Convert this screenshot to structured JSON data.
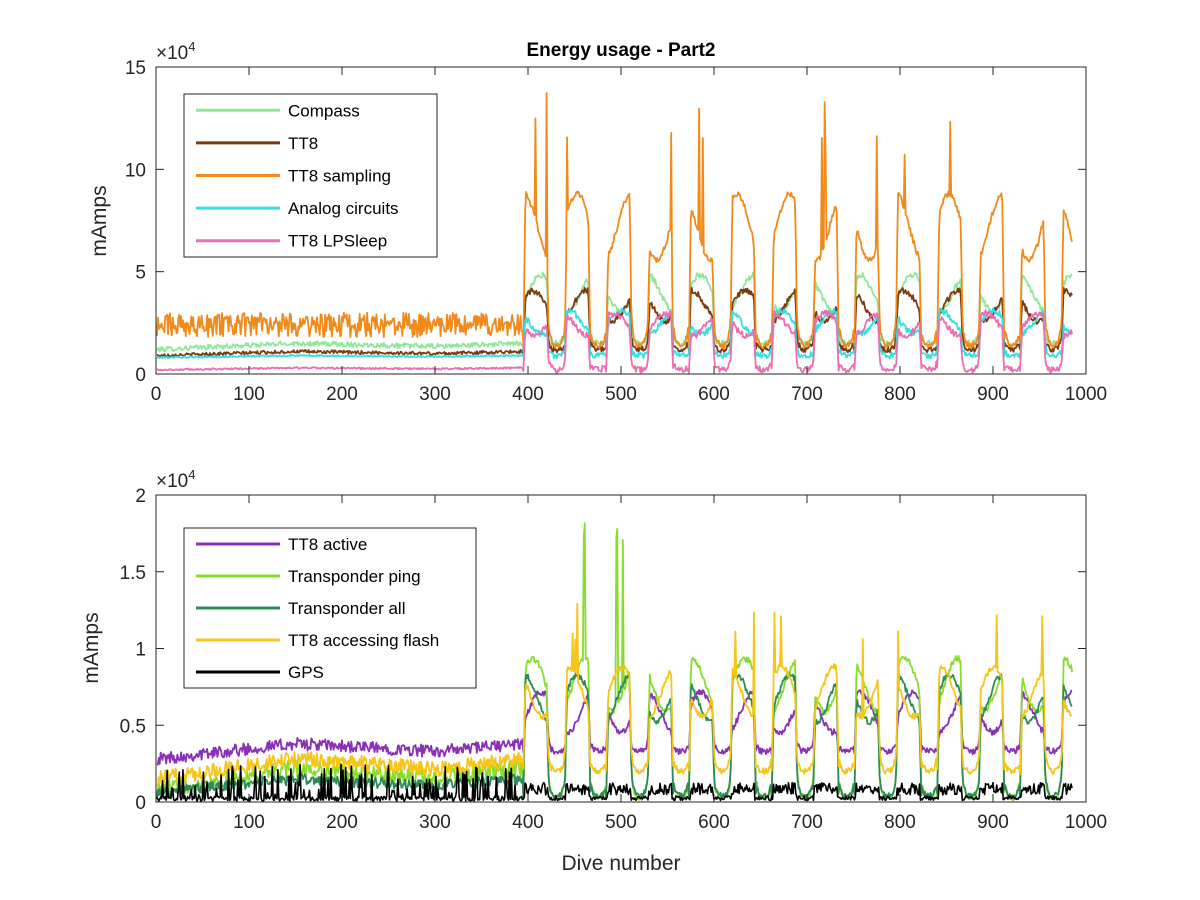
{
  "chart_data": [
    {
      "type": "line",
      "title": "Energy usage - Part2",
      "xlabel": "",
      "ylabel": "mAmps",
      "xlim": [
        0,
        1000
      ],
      "ylim": [
        0,
        150000
      ],
      "x_ticks": [
        "0",
        "100",
        "200",
        "300",
        "400",
        "500",
        "600",
        "700",
        "800",
        "900",
        "1000"
      ],
      "y_ticks": [
        "0",
        "5",
        "10",
        "15"
      ],
      "y_exponent": "×10",
      "y_exponent_power": "4",
      "grid": false,
      "legend_position": "top-left",
      "series": [
        {
          "name": "Compass",
          "color": "#8ee89a",
          "base_low": 12000,
          "base_high": 15000,
          "plateau": 44000,
          "trough": 15000
        },
        {
          "name": "TT8",
          "color": "#7b3b10",
          "base_low": 9000,
          "base_high": 11000,
          "plateau": 37000,
          "trough": 12000
        },
        {
          "name": "TT8 sampling",
          "color": "#f08a1a",
          "base_low": 18000,
          "base_high": 28000,
          "plateau": 80000,
          "trough": 14000
        },
        {
          "name": "Analog circuits",
          "color": "#33e0e6",
          "base_low": 8000,
          "base_high": 9000,
          "plateau": 28000,
          "trough": 9000
        },
        {
          "name": "TT8 LPSleep",
          "color": "#ea6fb0",
          "base_low": 2000,
          "base_high": 3000,
          "plateau": 27000,
          "trough": 2000
        }
      ]
    },
    {
      "type": "line",
      "title": "",
      "xlabel": "Dive number",
      "ylabel": "mAmps",
      "xlim": [
        0,
        1000
      ],
      "ylim": [
        0,
        20000
      ],
      "x_ticks": [
        "0",
        "100",
        "200",
        "300",
        "400",
        "500",
        "600",
        "700",
        "800",
        "900",
        "1000"
      ],
      "y_ticks": [
        "0",
        "0.5",
        "1",
        "1.5",
        "2"
      ],
      "y_exponent": "×10",
      "y_exponent_power": "4",
      "grid": false,
      "legend_position": "top-left",
      "series": [
        {
          "name": "TT8 active",
          "color": "#8a2fb8",
          "base_low": 2800,
          "base_high": 3800,
          "plateau": 6500,
          "trough": 3300
        },
        {
          "name": "Transponder ping",
          "color": "#86dd2a",
          "base_low": 800,
          "base_high": 2200,
          "plateau": 8500,
          "trough": 300
        },
        {
          "name": "Transponder all",
          "color": "#2e8b57",
          "base_low": 600,
          "base_high": 1500,
          "plateau": 7500,
          "trough": 400
        },
        {
          "name": "TT8 accessing flash",
          "color": "#f5c518",
          "base_low": 1500,
          "base_high": 2800,
          "plateau": 8000,
          "trough": 2000
        },
        {
          "name": "GPS",
          "color": "#000000",
          "base_low": 300,
          "base_high": 1500,
          "plateau": 900,
          "trough": 100
        }
      ]
    }
  ]
}
